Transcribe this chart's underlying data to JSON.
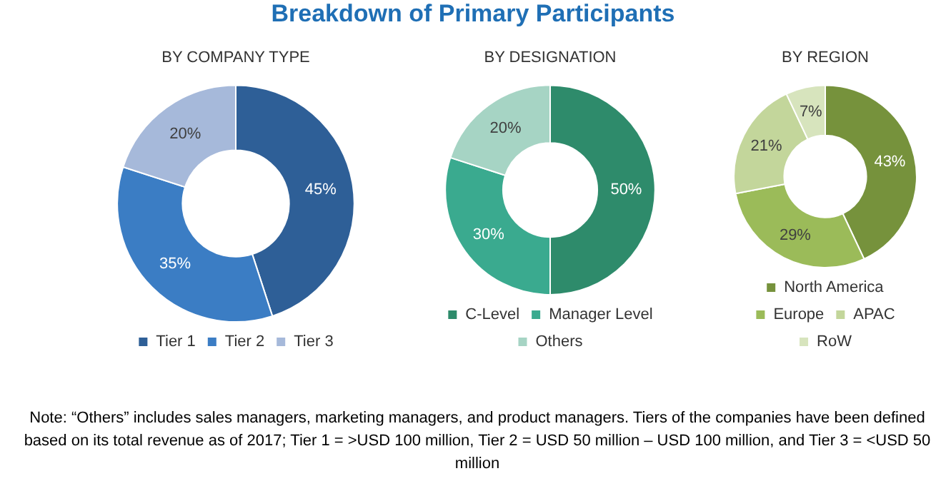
{
  "chart_data": [
    {
      "type": "other",
      "title": "Breakdown of Primary Participants",
      "annotations": [
        "Note: “Others” includes sales managers, marketing managers, and product managers. Tiers of the companies have been defined based on its total revenue as of 2017; Tier 1 = >USD 100 million, Tier 2 = USD 50 million – USD 100 million, and Tier 3 = <USD 50 million"
      ]
    },
    {
      "type": "donut",
      "title": "BY COMPANY TYPE",
      "categories": [
        "Tier 1",
        "Tier 2",
        "Tier 3"
      ],
      "values": [
        45,
        35,
        20
      ],
      "colors": [
        "#2e5f97",
        "#3b7dc4",
        "#a6b9da"
      ],
      "value_labels": [
        "45%",
        "35%",
        "20%"
      ],
      "legend": "bottom"
    },
    {
      "type": "donut",
      "title": "BY DESIGNATION",
      "categories": [
        "C-Level",
        "Manager Level",
        "Others"
      ],
      "values": [
        50,
        30,
        20
      ],
      "colors": [
        "#2e8b6b",
        "#3aaa8f",
        "#a6d4c4"
      ],
      "value_labels": [
        "50%",
        "30%",
        "20%"
      ],
      "legend": "bottom"
    },
    {
      "type": "donut",
      "title": "BY REGION",
      "categories": [
        "North America",
        "Europe",
        "APAC",
        "RoW"
      ],
      "values": [
        43,
        29,
        21,
        7
      ],
      "colors": [
        "#76923c",
        "#9bbb59",
        "#c3d69b",
        "#d7e4bd"
      ],
      "value_labels": [
        "43%",
        "29%",
        "21%",
        "7%"
      ],
      "legend": "bottom"
    }
  ]
}
